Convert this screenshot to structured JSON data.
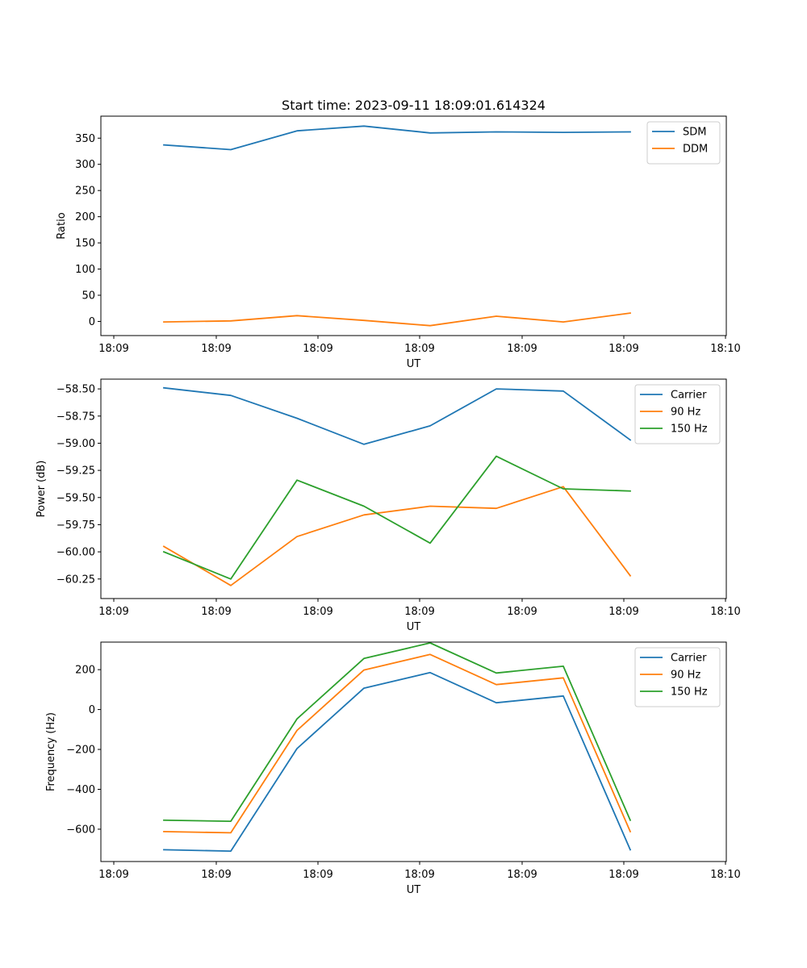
{
  "chart_data": [
    {
      "type": "line",
      "title": "Start time: 2023-09-11 18:09:01.614324",
      "xlabel": "UT",
      "ylabel": "Ratio",
      "x_tick_labels": [
        "18:09",
        "18:09",
        "18:09",
        "18:09",
        "18:09",
        "18:09",
        "18:10"
      ],
      "y_ticks": [
        0,
        50,
        100,
        150,
        200,
        250,
        300,
        350
      ],
      "y_tick_labels": [
        "0",
        "50",
        "100",
        "150",
        "200",
        "250",
        "300",
        "350"
      ],
      "ylim": [
        -27,
        392
      ],
      "legend_position": "top-right",
      "series": [
        {
          "name": "SDM",
          "color": "#1f77b4",
          "values": [
            337,
            328,
            364,
            373,
            360,
            362,
            361,
            362
          ]
        },
        {
          "name": "DDM",
          "color": "#ff7f0e",
          "values": [
            -1,
            1,
            11,
            2,
            -8,
            10,
            -1,
            16
          ]
        }
      ]
    },
    {
      "type": "line",
      "title": "",
      "xlabel": "UT",
      "ylabel": "Power (dB)",
      "x_tick_labels": [
        "18:09",
        "18:09",
        "18:09",
        "18:09",
        "18:09",
        "18:09",
        "18:10"
      ],
      "y_ticks": [
        -60.25,
        -60.0,
        -59.75,
        -59.5,
        -59.25,
        -59.0,
        -58.75,
        -58.5
      ],
      "y_tick_labels": [
        "−60.25",
        "−60.00",
        "−59.75",
        "−59.50",
        "−59.25",
        "−59.00",
        "−58.75",
        "−58.50"
      ],
      "ylim": [
        -60.43,
        -58.41
      ],
      "legend_position": "top-right",
      "series": [
        {
          "name": "Carrier",
          "color": "#1f77b4",
          "values": [
            -58.49,
            -58.56,
            -58.77,
            -59.01,
            -58.84,
            -58.5,
            -58.52,
            -58.97
          ]
        },
        {
          "name": "90 Hz",
          "color": "#ff7f0e",
          "values": [
            -59.95,
            -60.31,
            -59.86,
            -59.66,
            -59.58,
            -59.6,
            -59.4,
            -60.22
          ]
        },
        {
          "name": "150 Hz",
          "color": "#2ca02c",
          "values": [
            -60.0,
            -60.25,
            -59.34,
            -59.58,
            -59.92,
            -59.12,
            -59.42,
            -59.44
          ]
        }
      ]
    },
    {
      "type": "line",
      "title": "",
      "xlabel": "UT",
      "ylabel": "Frequency (Hz)",
      "x_tick_labels": [
        "18:09",
        "18:09",
        "18:09",
        "18:09",
        "18:09",
        "18:09",
        "18:10"
      ],
      "y_ticks": [
        -600,
        -400,
        -200,
        0,
        200
      ],
      "y_tick_labels": [
        "−600",
        "−400",
        "−200",
        "0",
        "200"
      ],
      "ylim": [
        -762,
        338
      ],
      "legend_position": "top-right",
      "series": [
        {
          "name": "Carrier",
          "color": "#1f77b4",
          "values": [
            -703,
            -710,
            -196,
            107,
            185,
            34,
            68,
            -703
          ]
        },
        {
          "name": "90 Hz",
          "color": "#ff7f0e",
          "values": [
            -612,
            -618,
            -105,
            198,
            276,
            125,
            159,
            -612
          ]
        },
        {
          "name": "150 Hz",
          "color": "#2ca02c",
          "values": [
            -555,
            -560,
            -47,
            256,
            334,
            183,
            217,
            -555
          ]
        }
      ]
    }
  ]
}
